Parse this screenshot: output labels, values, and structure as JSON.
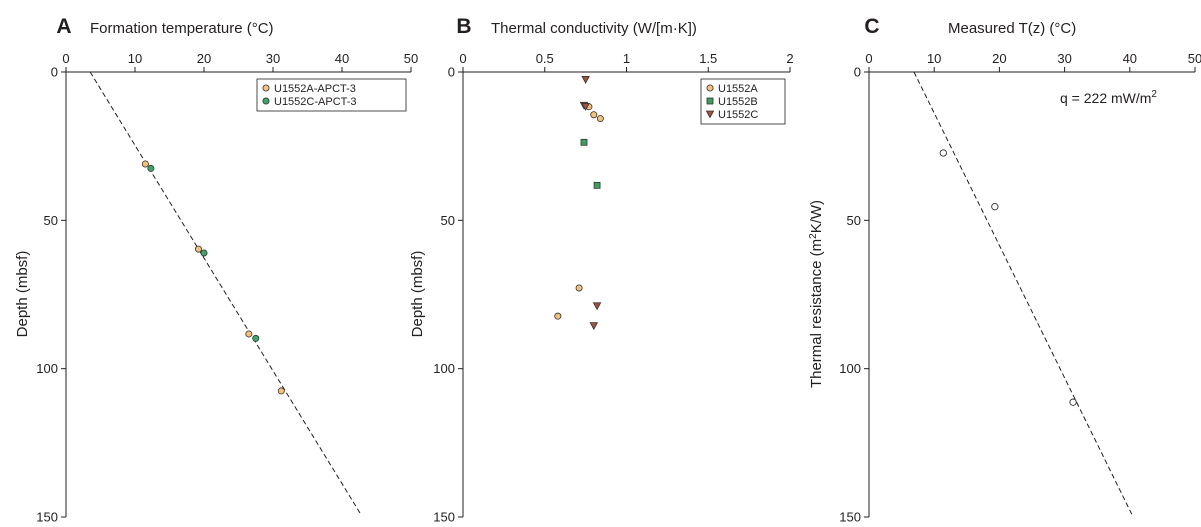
{
  "colors": {
    "u1552a": "#f2c27b",
    "u1552b": "#3e9e5e",
    "u1552c": "#a0523d",
    "u1552c_apct": "#3ea56a",
    "outline": "#333333",
    "axis": "#231f20"
  },
  "chart_data": [
    {
      "type": "scatter",
      "panel_letter": "A",
      "title": "Formation temperature (°C)",
      "xlabel": "",
      "ylabel": "Depth (mbsf)",
      "xlim": [
        0,
        50
      ],
      "ylim": [
        0,
        150
      ],
      "y_inverted": true,
      "x_axis_position": "top",
      "x_ticks": [
        0,
        10,
        20,
        30,
        40,
        50
      ],
      "y_ticks": [
        0,
        50,
        100,
        150
      ],
      "grid": false,
      "legend_position": "top-right",
      "series": [
        {
          "name": "U1552A-APCT-3",
          "marker": "circle",
          "color": "#f2c27b",
          "points": [
            [
              11.5,
              31
            ],
            [
              19.2,
              59.7
            ],
            [
              26.5,
              88.3
            ],
            [
              31.2,
              107.5
            ]
          ]
        },
        {
          "name": "U1552C-APCT-3",
          "marker": "circle",
          "color": "#3ea56a",
          "points": [
            [
              12.3,
              32.5
            ],
            [
              20,
              61
            ],
            [
              27.5,
              89.8
            ]
          ]
        }
      ],
      "fit_line": {
        "style": "dashed",
        "points": [
          [
            3.5,
            0
          ],
          [
            42.7,
            149
          ]
        ]
      }
    },
    {
      "type": "scatter",
      "panel_letter": "B",
      "title": "Thermal conductivity (W/[m·K])",
      "xlabel": "",
      "ylabel": "Depth (mbsf)",
      "xlim": [
        0,
        2
      ],
      "ylim": [
        0,
        150
      ],
      "y_inverted": true,
      "x_axis_position": "top",
      "x_ticks": [
        0,
        0.5,
        1,
        1.5,
        2
      ],
      "x_tick_labels": [
        "0",
        "0.5",
        "1",
        "1.5",
        "2"
      ],
      "y_ticks": [
        0,
        50,
        100,
        150
      ],
      "grid": false,
      "legend_position": "top-right",
      "series": [
        {
          "name": "U1552A",
          "marker": "circle",
          "color": "#f2c27b",
          "points": [
            [
              0.77,
              11.7
            ],
            [
              0.8,
              14.4
            ],
            [
              0.84,
              15.7
            ],
            [
              0.71,
              72.8
            ],
            [
              0.58,
              82.3
            ]
          ]
        },
        {
          "name": "U1552B",
          "marker": "square",
          "color": "#3e9e5e",
          "points": [
            [
              0.74,
              23.7
            ],
            [
              0.82,
              38.2
            ]
          ]
        },
        {
          "name": "U1552C",
          "marker": "triangle-down",
          "color": "#a0523d",
          "points": [
            [
              0.75,
              2.5
            ],
            [
              0.74,
              11.2
            ],
            [
              0.75,
              11.6
            ],
            [
              0.82,
              78.8
            ],
            [
              0.8,
              85.5
            ]
          ]
        }
      ]
    },
    {
      "type": "scatter",
      "panel_letter": "C",
      "title": "Measured T(z) (°C)",
      "xlabel": "",
      "ylabel_prefix": "Thermal resistance (m",
      "ylabel_sup": "2",
      "ylabel_suffix": "K/W)",
      "xlim": [
        0,
        50
      ],
      "ylim": [
        0,
        150
      ],
      "y_inverted": true,
      "x_axis_position": "top",
      "x_ticks": [
        0,
        10,
        20,
        30,
        40,
        50
      ],
      "y_ticks": [
        0,
        50,
        100,
        150
      ],
      "grid": false,
      "annotation_prefix": "q = 222 mW/m",
      "annotation_sup": "2",
      "series": [
        {
          "name": "",
          "marker": "open-circle",
          "color": "#ffffff",
          "points": [
            [
              11.4,
              27.3
            ],
            [
              19.3,
              45.4
            ],
            [
              31.3,
              111.3
            ]
          ]
        }
      ],
      "fit_line": {
        "style": "dashed",
        "points": [
          [
            6.9,
            0
          ],
          [
            40.4,
            149.5
          ]
        ]
      }
    }
  ]
}
